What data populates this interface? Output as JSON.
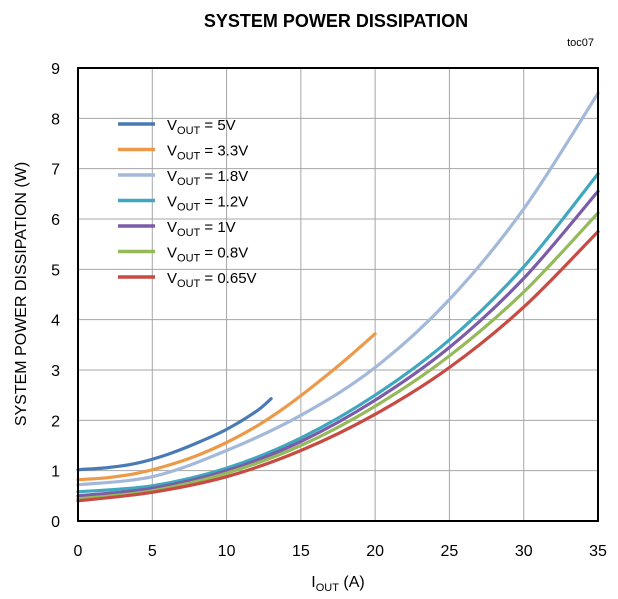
{
  "chart_data": {
    "type": "line",
    "title": "SYSTEM POWER DISSIPATION",
    "tag": "toc07",
    "xlabel": {
      "main": "I",
      "sub": "OUT",
      "suffix": " (A)"
    },
    "ylabel": "SYSTEM POWER DISSIPATION  (W)",
    "xlim": [
      0,
      35
    ],
    "ylim": [
      0,
      9
    ],
    "xticks": [
      0,
      5,
      10,
      15,
      20,
      25,
      30,
      35
    ],
    "yticks": [
      0,
      1,
      2,
      3,
      4,
      5,
      6,
      7,
      8,
      9
    ],
    "grid": true,
    "legend_position": "top-left",
    "series": [
      {
        "name": "V_OUT = 5V",
        "label_main": "V",
        "label_sub": "OUT",
        "label_suffix": " = 5V",
        "color": "#4a7ab5",
        "x": [
          0,
          2,
          4,
          6,
          8,
          10,
          12,
          13
        ],
        "y": [
          1.02,
          1.06,
          1.15,
          1.32,
          1.55,
          1.82,
          2.18,
          2.43
        ]
      },
      {
        "name": "V_OUT = 3.3V",
        "label_main": "V",
        "label_sub": "OUT",
        "label_suffix": " = 3.3V",
        "color": "#ec9a4a",
        "x": [
          0,
          2,
          4,
          6,
          8,
          10,
          12,
          14,
          16,
          18,
          20
        ],
        "y": [
          0.82,
          0.86,
          0.95,
          1.1,
          1.3,
          1.56,
          1.88,
          2.27,
          2.72,
          3.2,
          3.72
        ]
      },
      {
        "name": "V_OUT = 1.8V",
        "label_main": "V",
        "label_sub": "OUT",
        "label_suffix": " = 1.8V",
        "color": "#a4b9da",
        "x": [
          0,
          5,
          10,
          15,
          20,
          25,
          30,
          35
        ],
        "y": [
          0.72,
          0.88,
          1.4,
          2.1,
          3.05,
          4.4,
          6.2,
          8.5
        ]
      },
      {
        "name": "V_OUT = 1.2V",
        "label_main": "V",
        "label_sub": "OUT",
        "label_suffix": " = 1.2V",
        "color": "#3fa8bf",
        "x": [
          0,
          5,
          10,
          15,
          20,
          25,
          30,
          35
        ],
        "y": [
          0.58,
          0.7,
          1.05,
          1.65,
          2.5,
          3.6,
          5.05,
          6.9
        ]
      },
      {
        "name": "V_OUT = 1V",
        "label_main": "V",
        "label_sub": "OUT",
        "label_suffix": " = 1V",
        "color": "#7c5ba8",
        "x": [
          0,
          5,
          10,
          15,
          20,
          25,
          30,
          35
        ],
        "y": [
          0.5,
          0.65,
          1.0,
          1.58,
          2.4,
          3.45,
          4.82,
          6.55
        ]
      },
      {
        "name": "V_OUT = 0.8V",
        "label_main": "V",
        "label_sub": "OUT",
        "label_suffix": " = 0.8V",
        "color": "#94ba5a",
        "x": [
          0,
          5,
          10,
          15,
          20,
          25,
          30,
          35
        ],
        "y": [
          0.44,
          0.6,
          0.95,
          1.5,
          2.28,
          3.28,
          4.55,
          6.12
        ]
      },
      {
        "name": "V_OUT = 0.65V",
        "label_main": "V",
        "label_sub": "OUT",
        "label_suffix": " = 0.65V",
        "color": "#c74b43",
        "x": [
          0,
          5,
          10,
          15,
          20,
          25,
          30,
          35
        ],
        "y": [
          0.4,
          0.57,
          0.88,
          1.4,
          2.12,
          3.05,
          4.25,
          5.75
        ]
      }
    ]
  }
}
